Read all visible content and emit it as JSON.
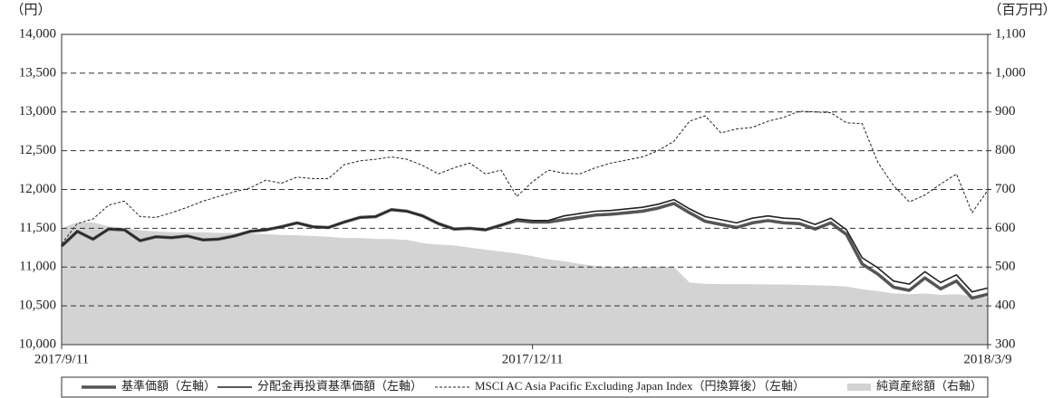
{
  "chart_data": {
    "type": "line",
    "y_unit": "（円）",
    "y2_unit": "（百万円）",
    "categories": [
      "2017/9/11",
      null,
      null,
      null,
      null,
      null,
      null,
      null,
      null,
      null,
      null,
      null,
      null,
      null,
      null,
      null,
      null,
      null,
      null,
      null,
      null,
      null,
      null,
      null,
      null,
      null,
      null,
      null,
      null,
      null,
      "2017/12/11",
      null,
      null,
      null,
      null,
      null,
      null,
      null,
      null,
      null,
      null,
      null,
      null,
      null,
      null,
      null,
      null,
      null,
      null,
      null,
      null,
      null,
      null,
      null,
      null,
      null,
      null,
      null,
      null,
      "2018/3/9"
    ],
    "ylim": [
      10000,
      14000
    ],
    "yticks": [
      {
        "value": 10000,
        "label": "10,000"
      },
      {
        "value": 10500,
        "label": "10,500"
      },
      {
        "value": 11000,
        "label": "11,000"
      },
      {
        "value": 11500,
        "label": "11,500"
      },
      {
        "value": 12000,
        "label": "12,000"
      },
      {
        "value": 12500,
        "label": "12,500"
      },
      {
        "value": 13000,
        "label": "13,000"
      },
      {
        "value": 13500,
        "label": "13,500"
      },
      {
        "value": 14000,
        "label": "14,000"
      }
    ],
    "y2lim": [
      300,
      1100
    ],
    "y2ticks": [
      300,
      400,
      500,
      600,
      700,
      800,
      900,
      {
        "value": 1000,
        "label": "1,000"
      },
      {
        "value": 1100,
        "label": "1,100"
      }
    ],
    "grid": true,
    "series": [
      {
        "name": "純資産総額（右軸）",
        "axis": "y2",
        "kind": "area",
        "color": "#d3d3d3",
        "values": [
          600,
          615,
          615,
          605,
          600,
          595,
          592,
          590,
          590,
          590,
          588,
          588,
          587,
          585,
          583,
          582,
          580,
          578,
          575,
          575,
          573,
          572,
          570,
          562,
          558,
          556,
          550,
          545,
          540,
          535,
          528,
          520,
          515,
          508,
          503,
          500,
          500,
          500,
          500,
          500,
          460,
          457,
          456,
          456,
          456,
          455,
          455,
          454,
          453,
          452,
          450,
          443,
          438,
          432,
          430,
          432,
          428,
          430,
          425,
          422
        ]
      },
      {
        "name": "基準価額（左軸）",
        "color": "#555555",
        "line_width": 3.5,
        "values": [
          11270,
          11460,
          11360,
          11490,
          11480,
          11340,
          11390,
          11380,
          11400,
          11350,
          11360,
          11400,
          11460,
          11480,
          11520,
          11570,
          11520,
          11510,
          11580,
          11640,
          11650,
          11740,
          11720,
          11660,
          11560,
          11490,
          11500,
          11480,
          11540,
          11600,
          11580,
          11580,
          11610,
          11640,
          11670,
          11680,
          11700,
          11720,
          11760,
          11820,
          11700,
          11590,
          11550,
          11510,
          11570,
          11600,
          11570,
          11560,
          11490,
          11570,
          11420,
          11040,
          10910,
          10740,
          10700,
          10860,
          10720,
          10820,
          10600,
          10650
        ]
      },
      {
        "name": "分配金再投資基準価額（左軸）",
        "color": "#222222",
        "line_width": 1.6,
        "values": [
          11270,
          11460,
          11360,
          11490,
          11480,
          11340,
          11390,
          11380,
          11400,
          11350,
          11360,
          11400,
          11460,
          11480,
          11520,
          11570,
          11520,
          11510,
          11580,
          11640,
          11650,
          11740,
          11720,
          11660,
          11560,
          11490,
          11500,
          11480,
          11540,
          11620,
          11600,
          11600,
          11660,
          11690,
          11720,
          11730,
          11750,
          11770,
          11810,
          11870,
          11750,
          11650,
          11610,
          11570,
          11630,
          11660,
          11630,
          11620,
          11550,
          11630,
          11480,
          11120,
          10990,
          10820,
          10780,
          10940,
          10800,
          10900,
          10680,
          10730
        ]
      },
      {
        "name": "MSCI AC Asia Pacific Excluding Japan Index（円換算後）（左軸）",
        "color": "#222222",
        "line_width": 1,
        "dashed": true,
        "values": [
          11300,
          11560,
          11620,
          11800,
          11850,
          11650,
          11640,
          11700,
          11770,
          11850,
          11910,
          11970,
          12020,
          12120,
          12080,
          12160,
          12140,
          12140,
          12320,
          12370,
          12390,
          12420,
          12390,
          12310,
          12200,
          12280,
          12340,
          12200,
          12250,
          11910,
          12100,
          12250,
          12210,
          12200,
          12280,
          12340,
          12380,
          12420,
          12500,
          12620,
          12880,
          12950,
          12730,
          12780,
          12800,
          12880,
          12930,
          13010,
          13000,
          12990,
          12860,
          12850,
          12350,
          12050,
          11840,
          11930,
          12070,
          12200,
          11700,
          11990
        ]
      }
    ]
  }
}
